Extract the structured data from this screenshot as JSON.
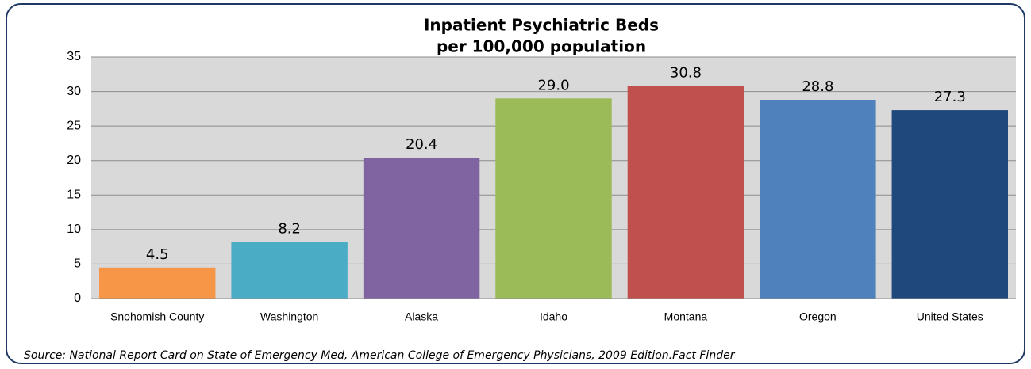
{
  "chart_data": {
    "type": "bar",
    "title": "Inpatient Psychiatric Beds",
    "subtitle": "per 100,000 population",
    "categories": [
      "Snohomish County",
      "Washington",
      "Alaska",
      "Idaho",
      "Montana",
      "Oregon",
      "United States"
    ],
    "values": [
      4.5,
      8.2,
      20.4,
      29,
      30.8,
      28.8,
      27.3
    ],
    "value_labels": [
      "4.5",
      "8.2",
      "20.4",
      "29.0",
      "30.8",
      "28.8",
      "27.3"
    ],
    "colors": [
      "#f79646",
      "#4bacc6",
      "#8064a2",
      "#9bbb59",
      "#c0504d",
      "#4f81bd",
      "#1f497d"
    ],
    "ylim": [
      0,
      35
    ],
    "yticks": [
      0,
      5,
      10,
      15,
      20,
      25,
      30,
      35
    ],
    "grid": true,
    "source": "Source:  National Report Card on State of Emergency Med, American College of Emergency Physicians, 2009 Edition.Fact Finder"
  }
}
